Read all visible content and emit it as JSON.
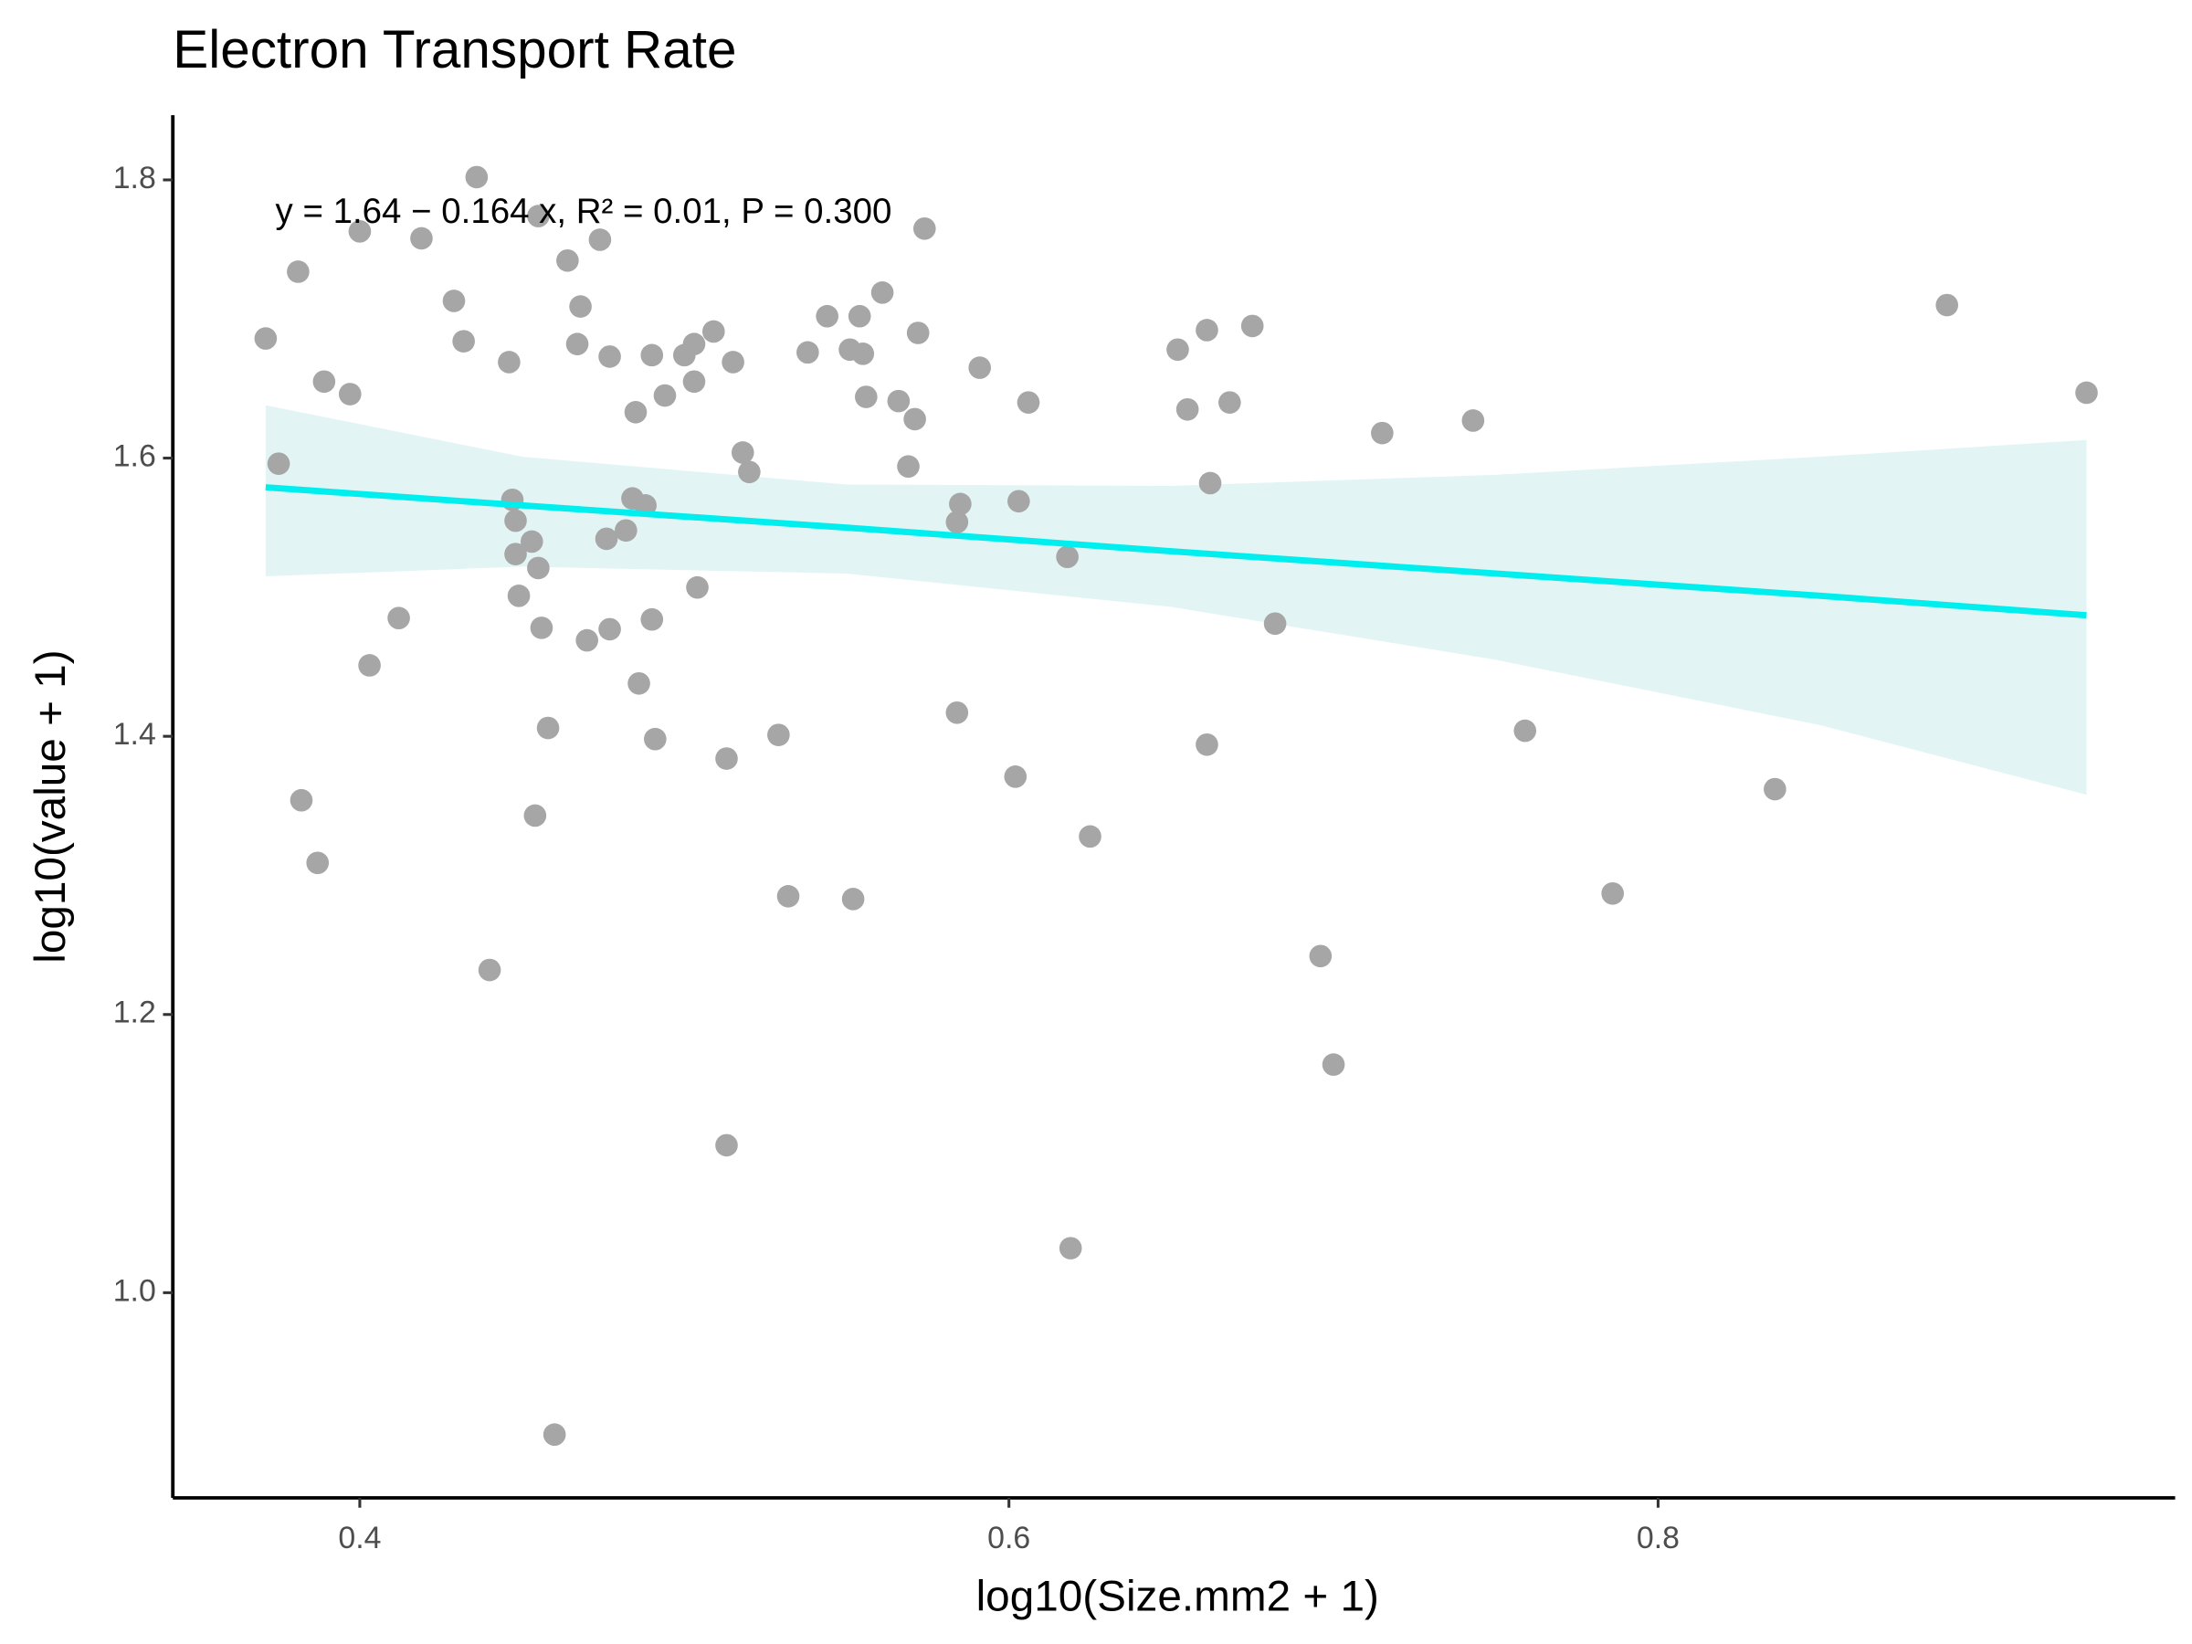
{
  "chart_data": {
    "type": "scatter",
    "title": "Electron Transport Rate",
    "x_label": "log10(Size.mm2 + 1)",
    "y_label": "log10(value + 1)",
    "annotation": "y = 1.64 − 0.164 x, R² = 0.01, P = 0.300",
    "x": [
      0.371,
      0.375,
      0.381,
      0.382,
      0.387,
      0.389,
      0.397,
      0.4,
      0.403,
      0.412,
      0.419,
      0.429,
      0.432,
      0.436,
      0.44,
      0.446,
      0.447,
      0.448,
      0.448,
      0.449,
      0.453,
      0.454,
      0.455,
      0.455,
      0.456,
      0.458,
      0.46,
      0.464,
      0.467,
      0.468,
      0.47,
      0.474,
      0.476,
      0.477,
      0.477,
      0.482,
      0.484,
      0.485,
      0.486,
      0.488,
      0.49,
      0.49,
      0.491,
      0.494,
      0.5,
      0.503,
      0.503,
      0.504,
      0.509,
      0.513,
      0.513,
      0.515,
      0.518,
      0.52,
      0.529,
      0.532,
      0.538,
      0.544,
      0.551,
      0.552,
      0.554,
      0.555,
      0.556,
      0.561,
      0.566,
      0.569,
      0.571,
      0.572,
      0.574,
      0.584,
      0.584,
      0.585,
      0.591,
      0.602,
      0.603,
      0.606,
      0.618,
      0.619,
      0.625,
      0.652,
      0.655,
      0.661,
      0.661,
      0.662,
      0.668,
      0.675,
      0.682,
      0.696,
      0.7,
      0.715,
      0.743,
      0.759,
      0.786,
      0.836,
      0.889,
      0.932
    ],
    "values": [
      1.686,
      1.596,
      1.734,
      1.354,
      1.309,
      1.655,
      1.646,
      1.763,
      1.451,
      1.485,
      1.758,
      1.713,
      1.684,
      1.802,
      1.232,
      1.669,
      1.57,
      1.555,
      1.531,
      1.501,
      1.54,
      1.343,
      1.774,
      1.521,
      1.478,
      1.406,
      0.898,
      1.742,
      1.682,
      1.709,
      1.469,
      1.757,
      1.542,
      1.673,
      1.477,
      1.548,
      1.571,
      1.633,
      1.438,
      1.566,
      1.674,
      1.484,
      1.398,
      1.645,
      1.674,
      1.682,
      1.655,
      1.507,
      1.691,
      1.106,
      1.384,
      1.669,
      1.604,
      1.59,
      1.401,
      1.285,
      1.676,
      1.702,
      1.678,
      1.283,
      1.702,
      1.675,
      1.644,
      1.719,
      1.641,
      1.594,
      1.628,
      1.69,
      1.765,
      1.417,
      1.554,
      1.567,
      1.665,
      1.371,
      1.569,
      1.64,
      1.529,
      1.032,
      1.328,
      1.678,
      1.635,
      1.692,
      1.394,
      1.582,
      1.64,
      1.695,
      1.481,
      1.242,
      1.164,
      1.618,
      1.627,
      1.404,
      1.287,
      1.362,
      1.71,
      1.647
    ],
    "point_color": "#a6a6a6",
    "fit": {
      "x": [
        0.371,
        0.45,
        0.55,
        0.65,
        0.75,
        0.85,
        0.932
      ],
      "y": [
        1.579,
        1.566,
        1.55,
        1.533,
        1.517,
        1.501,
        1.487
      ],
      "lower": [
        1.515,
        1.522,
        1.517,
        1.493,
        1.455,
        1.408,
        1.358
      ],
      "upper": [
        1.638,
        1.601,
        1.581,
        1.58,
        1.588,
        1.601,
        1.613
      ],
      "line_color": "#00eeee",
      "band_color": "#e2f4f4"
    },
    "xlim": [
      0.3424,
      0.9593
    ],
    "ylim": [
      0.8525,
      1.8465
    ],
    "xticks": [
      0.4,
      0.6,
      0.8
    ],
    "yticks": [
      {
        "value": 1,
        "label": "1.0"
      },
      1.2,
      1.4,
      1.6,
      1.8
    ]
  }
}
